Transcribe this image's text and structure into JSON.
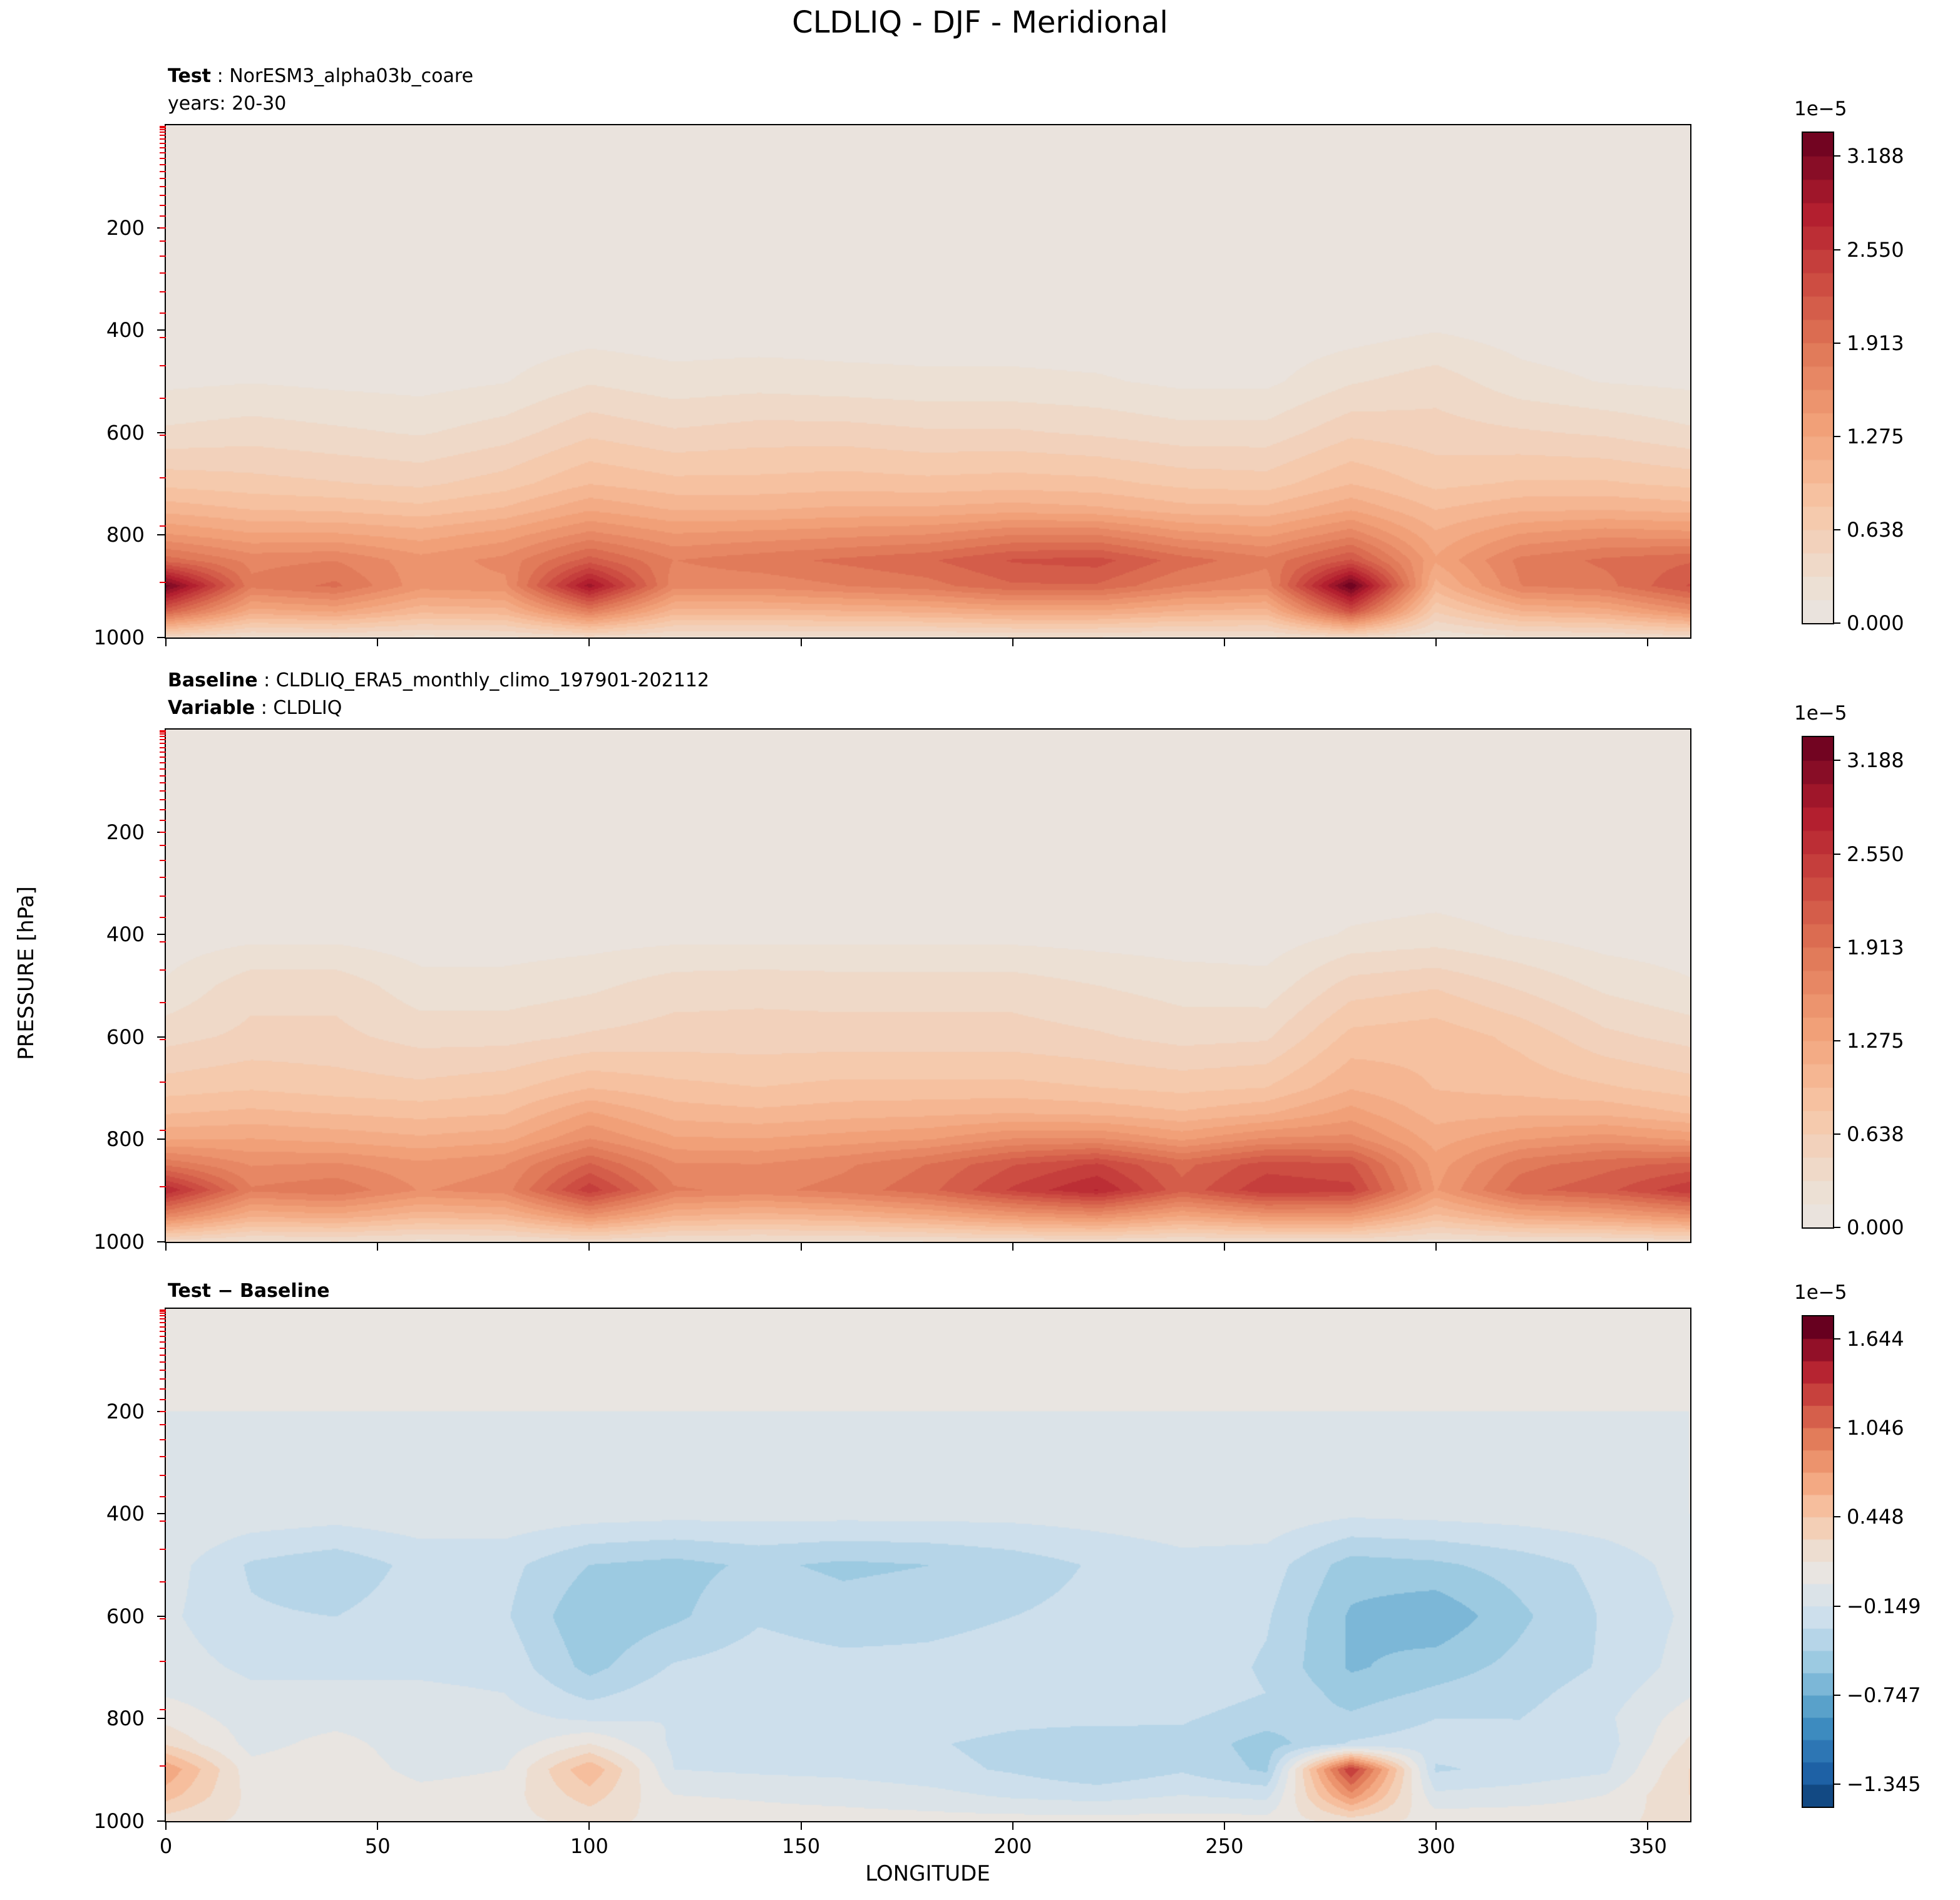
{
  "title": "CLDLIQ - DJF - Meridional",
  "axes": {
    "xlabel": "LONGITUDE",
    "ylabel": "PRESSURE [hPa]",
    "xticks": [
      0,
      50,
      100,
      150,
      200,
      250,
      300,
      350
    ],
    "yticks": [
      200,
      400,
      600,
      800,
      1000
    ],
    "xlim": [
      0,
      360
    ],
    "ylim": [
      1000,
      0
    ]
  },
  "colors": {
    "background": "#ffffff",
    "text": "#000000",
    "spine": "#000000",
    "model_level_tick": "#e8000b"
  },
  "model_level_pressures": [
    2,
    5,
    9,
    14,
    20,
    27,
    35,
    44,
    54,
    65,
    77,
    90,
    104,
    120,
    137,
    156,
    177,
    200,
    226,
    255,
    288,
    325,
    367,
    415,
    470,
    533,
    605,
    688,
    783,
    892
  ],
  "panels": [
    {
      "name": "test",
      "header_lines": [
        {
          "bold": "Test",
          "rest": " : NorESM3_alpha03b_coare"
        },
        {
          "bold": "",
          "rest": "years: 20-30"
        }
      ]
    },
    {
      "name": "baseline",
      "header_lines": [
        {
          "bold": "Baseline",
          "rest": " : CLDLIQ_ERA5_monthly_climo_197901-202112"
        },
        {
          "bold": "Variable",
          "rest": " : CLDLIQ"
        }
      ]
    },
    {
      "name": "difference",
      "header_lines": [
        {
          "bold": "Test − Baseline",
          "rest": ""
        }
      ]
    }
  ],
  "colorbars": [
    {
      "exponent": "1e−5",
      "ticks": [
        {
          "label": "3.188",
          "value": 3.188
        },
        {
          "label": "2.550",
          "value": 2.55
        },
        {
          "label": "1.913",
          "value": 1.913
        },
        {
          "label": "1.275",
          "value": 1.275
        },
        {
          "label": "0.638",
          "value": 0.638
        },
        {
          "label": "0.000",
          "value": 0.0
        }
      ]
    },
    {
      "exponent": "1e−5",
      "ticks": [
        {
          "label": "3.188",
          "value": 3.188
        },
        {
          "label": "2.550",
          "value": 2.55
        },
        {
          "label": "1.913",
          "value": 1.913
        },
        {
          "label": "1.275",
          "value": 1.275
        },
        {
          "label": "0.638",
          "value": 0.638
        },
        {
          "label": "0.000",
          "value": 0.0
        }
      ]
    },
    {
      "exponent": "1e−5",
      "ticks": [
        {
          "label": "1.644",
          "value": 1.644
        },
        {
          "label": "1.046",
          "value": 1.046
        },
        {
          "label": "0.448",
          "value": 0.448
        },
        {
          "label": "−0.149",
          "value": -0.149
        },
        {
          "label": "−0.747",
          "value": -0.747
        },
        {
          "label": "−1.345",
          "value": -1.345
        }
      ]
    }
  ],
  "colormap_stops": [
    [
      0.0,
      "#053061"
    ],
    [
      0.1,
      "#2166ac"
    ],
    [
      0.2,
      "#4393c3"
    ],
    [
      0.3,
      "#92c5de"
    ],
    [
      0.4,
      "#cadeed"
    ],
    [
      0.46,
      "#dde3e8"
    ],
    [
      0.5,
      "#e9e5e1"
    ],
    [
      0.54,
      "#ecdfd3"
    ],
    [
      0.62,
      "#f7c6a6"
    ],
    [
      0.7,
      "#f2a179"
    ],
    [
      0.78,
      "#e07857"
    ],
    [
      0.85,
      "#cc4a41"
    ],
    [
      0.92,
      "#b21d2e"
    ],
    [
      1.0,
      "#67001f"
    ]
  ],
  "chart_data": [
    {
      "type": "heatmap",
      "name": "test",
      "title": "Test : NorESM3_alpha03b_coare (years: 20-30)",
      "xlabel": "LONGITUDE",
      "ylabel": "PRESSURE [hPa]",
      "scale_exponent": "1e−5",
      "x": [
        0,
        20,
        40,
        60,
        80,
        100,
        120,
        140,
        160,
        180,
        200,
        220,
        240,
        260,
        280,
        300,
        320,
        340,
        360
      ],
      "y": [
        100,
        200,
        300,
        400,
        500,
        600,
        700,
        750,
        800,
        850,
        900,
        950,
        1000
      ],
      "levels": {
        "min": 0,
        "step": 0.1594,
        "n": 21,
        "center": 0,
        "span": 6.694
      },
      "values": [
        [
          0.02,
          0.02,
          0.02,
          0.02,
          0.02,
          0.02,
          0.02,
          0.02,
          0.02,
          0.02,
          0.02,
          0.02,
          0.02,
          0.02,
          0.02,
          0.02,
          0.02,
          0.02,
          0.02
        ],
        [
          0.02,
          0.02,
          0.02,
          0.02,
          0.02,
          0.02,
          0.02,
          0.02,
          0.02,
          0.02,
          0.02,
          0.02,
          0.02,
          0.02,
          0.02,
          0.03,
          0.02,
          0.02,
          0.02
        ],
        [
          0.03,
          0.03,
          0.03,
          0.03,
          0.03,
          0.04,
          0.03,
          0.03,
          0.03,
          0.03,
          0.03,
          0.03,
          0.03,
          0.03,
          0.04,
          0.06,
          0.04,
          0.03,
          0.03
        ],
        [
          0.05,
          0.05,
          0.05,
          0.05,
          0.05,
          0.08,
          0.06,
          0.06,
          0.06,
          0.06,
          0.06,
          0.05,
          0.05,
          0.05,
          0.08,
          0.15,
          0.08,
          0.05,
          0.05
        ],
        [
          0.12,
          0.15,
          0.12,
          0.1,
          0.15,
          0.3,
          0.22,
          0.25,
          0.22,
          0.2,
          0.2,
          0.18,
          0.12,
          0.12,
          0.3,
          0.4,
          0.22,
          0.15,
          0.12
        ],
        [
          0.35,
          0.4,
          0.35,
          0.3,
          0.4,
          0.6,
          0.5,
          0.55,
          0.55,
          0.5,
          0.5,
          0.45,
          0.38,
          0.38,
          0.6,
          0.55,
          0.5,
          0.45,
          0.35
        ],
        [
          0.75,
          0.7,
          0.65,
          0.6,
          0.72,
          0.95,
          0.85,
          0.85,
          0.88,
          0.85,
          0.88,
          0.85,
          0.75,
          0.72,
          0.95,
          0.75,
          0.82,
          0.82,
          0.75
        ],
        [
          1.05,
          0.95,
          0.92,
          0.85,
          0.98,
          1.25,
          1.1,
          1.1,
          1.15,
          1.15,
          1.2,
          1.15,
          1.02,
          1.0,
          1.25,
          0.95,
          1.08,
          1.1,
          1.05
        ],
        [
          1.45,
          1.3,
          1.3,
          1.2,
          1.35,
          1.65,
          1.45,
          1.5,
          1.55,
          1.6,
          1.75,
          1.75,
          1.5,
          1.4,
          1.7,
          1.15,
          1.45,
          1.55,
          1.5
        ],
        [
          2.0,
          1.7,
          1.75,
          1.5,
          1.65,
          2.15,
          1.75,
          1.85,
          1.95,
          2.05,
          2.25,
          2.3,
          2.0,
          1.8,
          2.25,
          1.3,
          1.8,
          1.95,
          2.05
        ],
        [
          3.25,
          1.8,
          1.95,
          1.5,
          1.55,
          2.95,
          1.65,
          1.65,
          1.75,
          1.85,
          2.05,
          2.05,
          1.75,
          1.65,
          3.35,
          1.05,
          1.75,
          1.85,
          2.25
        ],
        [
          2.1,
          1.2,
          1.3,
          1.0,
          1.05,
          1.8,
          1.05,
          1.05,
          1.1,
          1.15,
          1.25,
          1.25,
          1.1,
          1.05,
          2.3,
          0.65,
          1.1,
          1.2,
          1.55
        ],
        [
          0.45,
          0.3,
          0.32,
          0.28,
          0.3,
          0.42,
          0.3,
          0.3,
          0.3,
          0.3,
          0.32,
          0.32,
          0.3,
          0.3,
          0.45,
          0.2,
          0.3,
          0.32,
          0.4
        ]
      ]
    },
    {
      "type": "heatmap",
      "name": "baseline",
      "title": "Baseline : CLDLIQ_ERA5_monthly_climo_197901-202112 (Variable: CLDLIQ)",
      "xlabel": "LONGITUDE",
      "ylabel": "PRESSURE [hPa]",
      "scale_exponent": "1e−5",
      "x": [
        0,
        20,
        40,
        60,
        80,
        100,
        120,
        140,
        160,
        180,
        200,
        220,
        240,
        260,
        280,
        300,
        320,
        340,
        360
      ],
      "y": [
        100,
        200,
        300,
        400,
        500,
        600,
        700,
        750,
        800,
        850,
        900,
        950,
        1000
      ],
      "levels": {
        "min": 0,
        "step": 0.1594,
        "n": 21,
        "center": 0,
        "span": 6.694
      },
      "values": [
        [
          0.02,
          0.02,
          0.02,
          0.02,
          0.02,
          0.02,
          0.02,
          0.02,
          0.02,
          0.02,
          0.02,
          0.02,
          0.02,
          0.02,
          0.02,
          0.02,
          0.02,
          0.02,
          0.02
        ],
        [
          0.02,
          0.02,
          0.02,
          0.02,
          0.02,
          0.02,
          0.02,
          0.02,
          0.02,
          0.02,
          0.02,
          0.02,
          0.02,
          0.02,
          0.03,
          0.03,
          0.02,
          0.02,
          0.02
        ],
        [
          0.03,
          0.04,
          0.04,
          0.03,
          0.03,
          0.04,
          0.04,
          0.04,
          0.04,
          0.04,
          0.04,
          0.03,
          0.03,
          0.03,
          0.06,
          0.08,
          0.05,
          0.03,
          0.03
        ],
        [
          0.06,
          0.1,
          0.1,
          0.06,
          0.06,
          0.08,
          0.1,
          0.1,
          0.1,
          0.1,
          0.1,
          0.08,
          0.06,
          0.06,
          0.18,
          0.22,
          0.15,
          0.08,
          0.06
        ],
        [
          0.18,
          0.42,
          0.42,
          0.22,
          0.22,
          0.28,
          0.4,
          0.42,
          0.4,
          0.4,
          0.4,
          0.32,
          0.25,
          0.22,
          0.55,
          0.62,
          0.45,
          0.28,
          0.18
        ],
        [
          0.42,
          0.52,
          0.52,
          0.42,
          0.42,
          0.5,
          0.55,
          0.55,
          0.55,
          0.55,
          0.55,
          0.5,
          0.42,
          0.45,
          0.85,
          0.9,
          0.75,
          0.52,
          0.42
        ],
        [
          0.72,
          0.78,
          0.72,
          0.68,
          0.75,
          0.95,
          0.85,
          0.8,
          0.85,
          0.85,
          0.85,
          0.8,
          0.75,
          0.8,
          1.1,
          0.95,
          0.9,
          0.82,
          0.72
        ],
        [
          0.95,
          1.0,
          0.95,
          0.9,
          0.95,
          1.3,
          1.05,
          1.0,
          1.05,
          1.08,
          1.12,
          1.08,
          0.98,
          1.1,
          1.35,
          1.05,
          1.08,
          1.08,
          0.95
        ],
        [
          1.25,
          1.28,
          1.22,
          1.15,
          1.22,
          1.6,
          1.3,
          1.28,
          1.35,
          1.42,
          1.6,
          1.62,
          1.4,
          1.62,
          1.65,
          1.2,
          1.42,
          1.52,
          1.4
        ],
        [
          1.88,
          1.58,
          1.62,
          1.48,
          1.58,
          2.1,
          1.62,
          1.6,
          1.72,
          1.92,
          2.22,
          2.42,
          2.02,
          2.32,
          2.25,
          1.35,
          1.85,
          2.02,
          2.12
        ],
        [
          2.7,
          1.78,
          1.88,
          1.58,
          1.68,
          2.5,
          1.78,
          1.7,
          1.82,
          2.02,
          2.42,
          2.72,
          2.12,
          2.52,
          2.45,
          1.42,
          2.02,
          2.18,
          2.52
        ],
        [
          1.7,
          1.15,
          1.22,
          1.02,
          1.08,
          1.55,
          1.12,
          1.05,
          1.12,
          1.25,
          1.45,
          1.58,
          1.28,
          1.48,
          1.48,
          0.92,
          1.25,
          1.35,
          1.55
        ],
        [
          0.42,
          0.3,
          0.32,
          0.28,
          0.3,
          0.4,
          0.3,
          0.29,
          0.3,
          0.32,
          0.36,
          0.38,
          0.32,
          0.36,
          0.36,
          0.26,
          0.31,
          0.33,
          0.4
        ]
      ]
    },
    {
      "type": "heatmap",
      "name": "test_minus_baseline",
      "title": "Test − Baseline",
      "xlabel": "LONGITUDE",
      "ylabel": "PRESSURE [hPa]",
      "scale_exponent": "1e−5",
      "x": [
        0,
        20,
        40,
        60,
        80,
        100,
        120,
        140,
        160,
        180,
        200,
        220,
        240,
        260,
        280,
        300,
        320,
        340,
        360
      ],
      "y": [
        100,
        200,
        300,
        400,
        500,
        600,
        700,
        750,
        800,
        850,
        900,
        950,
        1000
      ],
      "levels": {
        "min": -1.495,
        "step": 0.1495,
        "n": 22,
        "center": 0.0747,
        "span": 3.289
      },
      "values": [
        [
          0.0,
          0.0,
          0.0,
          0.0,
          0.0,
          0.0,
          0.0,
          0.0,
          0.0,
          0.0,
          0.0,
          0.0,
          0.0,
          0.0,
          0.0,
          0.0,
          0.0,
          0.0,
          0.0
        ],
        [
          0.0,
          0.0,
          0.0,
          0.0,
          0.0,
          0.0,
          0.0,
          0.0,
          0.0,
          0.0,
          0.0,
          0.0,
          0.0,
          0.0,
          0.0,
          0.0,
          0.0,
          0.0,
          0.0
        ],
        [
          0.0,
          -0.02,
          -0.02,
          -0.02,
          -0.02,
          -0.02,
          -0.03,
          -0.03,
          -0.03,
          -0.03,
          -0.03,
          -0.02,
          -0.02,
          -0.02,
          -0.04,
          -0.04,
          -0.03,
          -0.02,
          0.0
        ],
        [
          0.0,
          -0.05,
          -0.08,
          -0.05,
          -0.05,
          -0.08,
          -0.1,
          -0.1,
          -0.1,
          -0.1,
          -0.1,
          -0.08,
          -0.05,
          -0.05,
          -0.12,
          -0.1,
          -0.08,
          -0.05,
          0.0
        ],
        [
          -0.08,
          -0.32,
          -0.4,
          -0.25,
          -0.25,
          -0.45,
          -0.5,
          -0.42,
          -0.48,
          -0.45,
          -0.38,
          -0.28,
          -0.2,
          -0.22,
          -0.52,
          -0.48,
          -0.38,
          -0.25,
          -0.08
        ],
        [
          -0.12,
          -0.28,
          -0.3,
          -0.22,
          -0.28,
          -0.58,
          -0.48,
          -0.32,
          -0.38,
          -0.35,
          -0.3,
          -0.25,
          -0.2,
          -0.28,
          -0.62,
          -0.72,
          -0.48,
          -0.28,
          -0.12
        ],
        [
          -0.08,
          -0.18,
          -0.18,
          -0.18,
          -0.2,
          -0.5,
          -0.28,
          -0.22,
          -0.25,
          -0.25,
          -0.22,
          -0.2,
          -0.2,
          -0.32,
          -0.62,
          -0.52,
          -0.4,
          -0.28,
          -0.08
        ],
        [
          -0.02,
          -0.12,
          -0.12,
          -0.12,
          -0.15,
          -0.35,
          -0.2,
          -0.18,
          -0.18,
          -0.18,
          -0.18,
          -0.18,
          -0.2,
          -0.3,
          -0.52,
          -0.42,
          -0.35,
          -0.22,
          -0.02
        ],
        [
          0.1,
          -0.08,
          -0.05,
          -0.08,
          -0.1,
          -0.18,
          -0.15,
          -0.15,
          -0.18,
          -0.2,
          -0.25,
          -0.25,
          -0.28,
          -0.38,
          -0.42,
          -0.3,
          -0.3,
          -0.18,
          0.08
        ],
        [
          0.28,
          -0.05,
          0.05,
          -0.08,
          -0.08,
          0.15,
          -0.18,
          -0.18,
          -0.22,
          -0.28,
          -0.35,
          -0.42,
          -0.35,
          -0.52,
          -0.28,
          -0.22,
          -0.28,
          -0.22,
          0.18
        ],
        [
          0.72,
          0.05,
          0.1,
          -0.05,
          0.0,
          0.58,
          -0.15,
          -0.18,
          -0.2,
          -0.25,
          -0.32,
          -0.42,
          -0.32,
          -0.48,
          1.35,
          -0.32,
          -0.25,
          -0.18,
          0.3
        ],
        [
          0.52,
          0.1,
          0.15,
          0.05,
          0.08,
          0.38,
          0.0,
          -0.02,
          -0.05,
          -0.1,
          -0.18,
          -0.22,
          -0.15,
          -0.2,
          0.85,
          -0.12,
          -0.08,
          0.0,
          0.3
        ],
        [
          0.22,
          0.12,
          0.12,
          0.1,
          0.1,
          0.2,
          0.1,
          0.06,
          0.06,
          0.06,
          0.06,
          0.06,
          0.06,
          0.06,
          0.22,
          0.1,
          0.1,
          0.1,
          0.22
        ]
      ]
    }
  ]
}
